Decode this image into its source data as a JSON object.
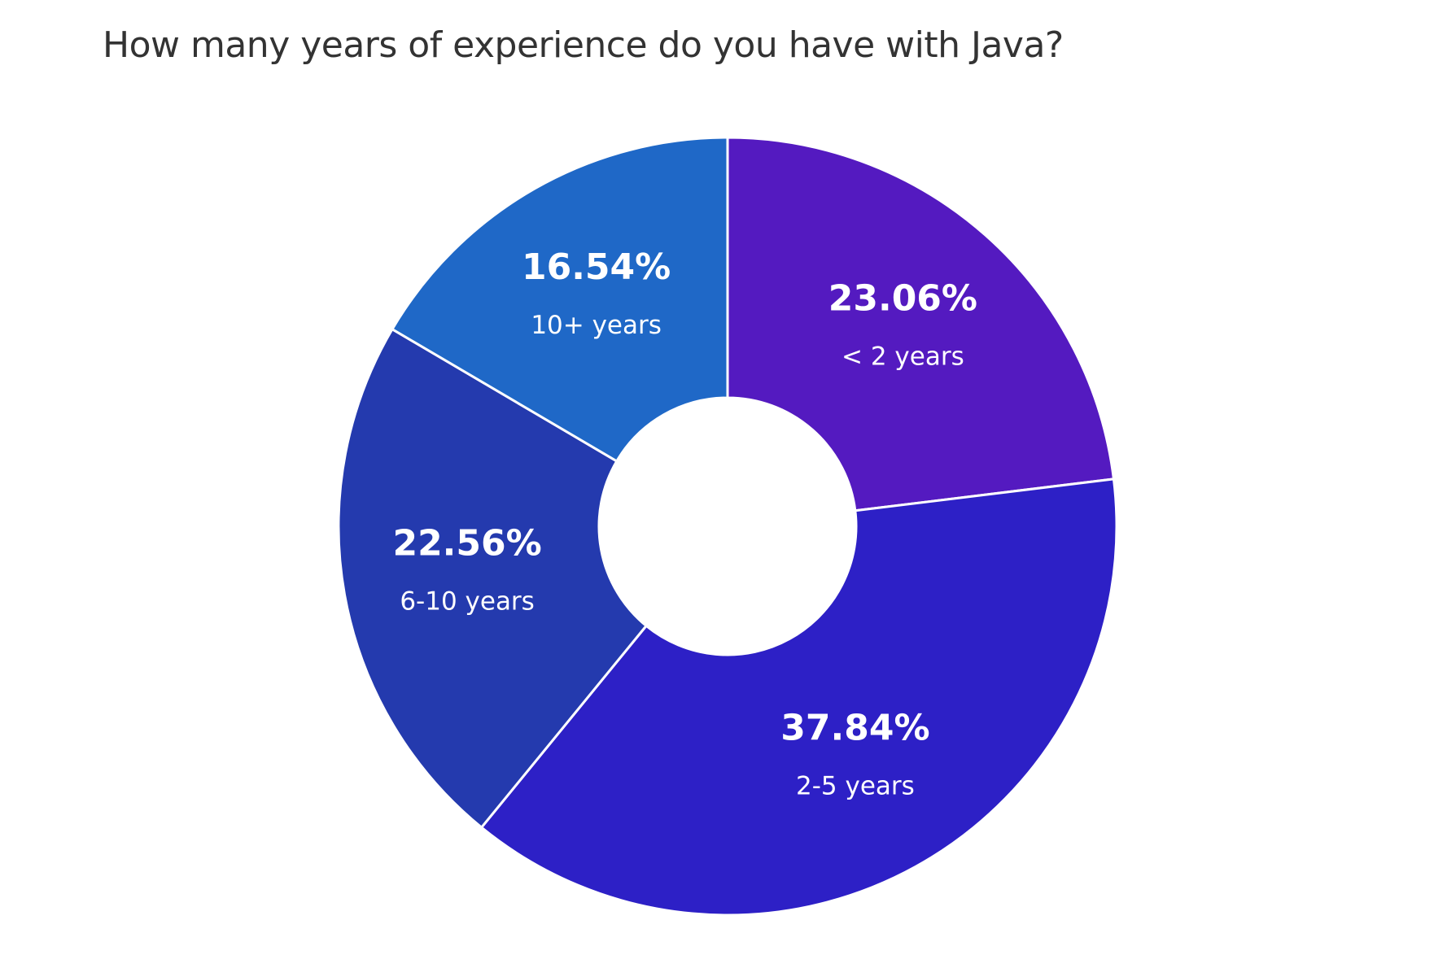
{
  "chart_data": {
    "type": "pie",
    "title": "How many years of experience do you have with Java?",
    "donut": true,
    "start_angle_deg": 0,
    "direction": "clockwise",
    "slices": [
      {
        "label": "< 2 years",
        "value": 23.06,
        "value_label": "23.06%",
        "color": "#541AC0"
      },
      {
        "label": "2-5 years",
        "value": 37.84,
        "value_label": "37.84%",
        "color": "#2D20C6"
      },
      {
        "label": "6-10 years",
        "value": 22.56,
        "value_label": "22.56%",
        "color": "#243AAE"
      },
      {
        "label": "10+ years",
        "value": 16.54,
        "value_label": "16.54%",
        "color": "#1F68C7"
      }
    ],
    "legend": "none",
    "data_labels": "inside"
  }
}
